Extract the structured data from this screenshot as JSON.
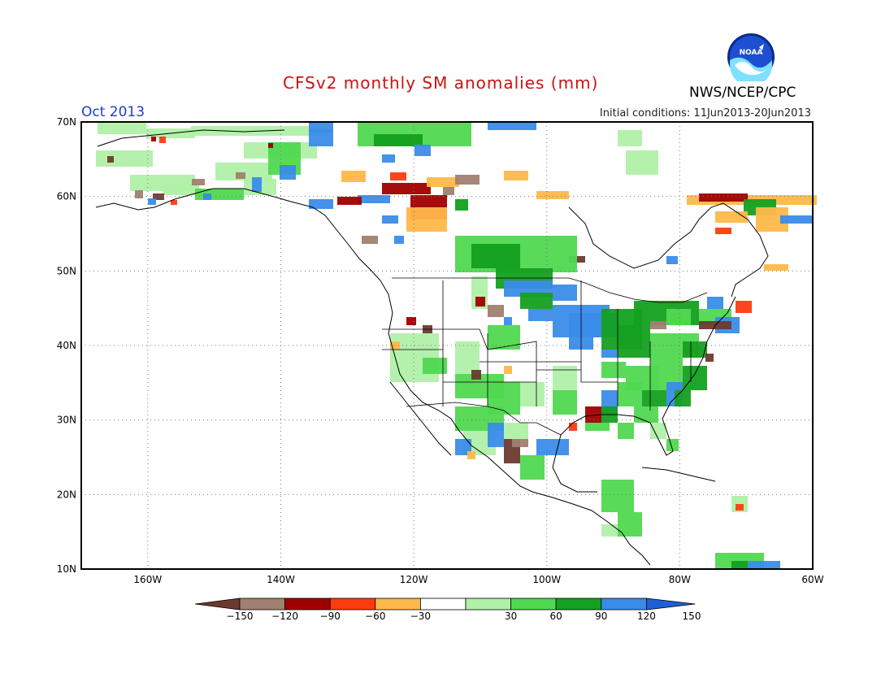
{
  "header": {
    "title": "CFSv2 monthly SM anomalies (mm)",
    "month": "Oct 2013",
    "initial_conditions": "Initial conditions: 11Jun2013-20Jun2013",
    "agency": "NWS/NCEP/CPC",
    "logo_text": "NOAA"
  },
  "map": {
    "lon_labels": [
      "160W",
      "140W",
      "120W",
      "100W",
      "80W",
      "60W"
    ],
    "lat_labels": [
      "70N",
      "60N",
      "50N",
      "40N",
      "30N",
      "20N",
      "10N"
    ]
  },
  "colorbar": {
    "labels": [
      "−150",
      "−120",
      "−90",
      "−60",
      "−30",
      "30",
      "60",
      "90",
      "120",
      "150"
    ],
    "colors": [
      "#6b3a2e",
      "#a08070",
      "#a00000",
      "#ff3b10",
      "#ffb84a",
      "#ffffff",
      "#b0f0a8",
      "#50d850",
      "#14a020",
      "#3a8ce8",
      "#1c60d8"
    ]
  }
}
